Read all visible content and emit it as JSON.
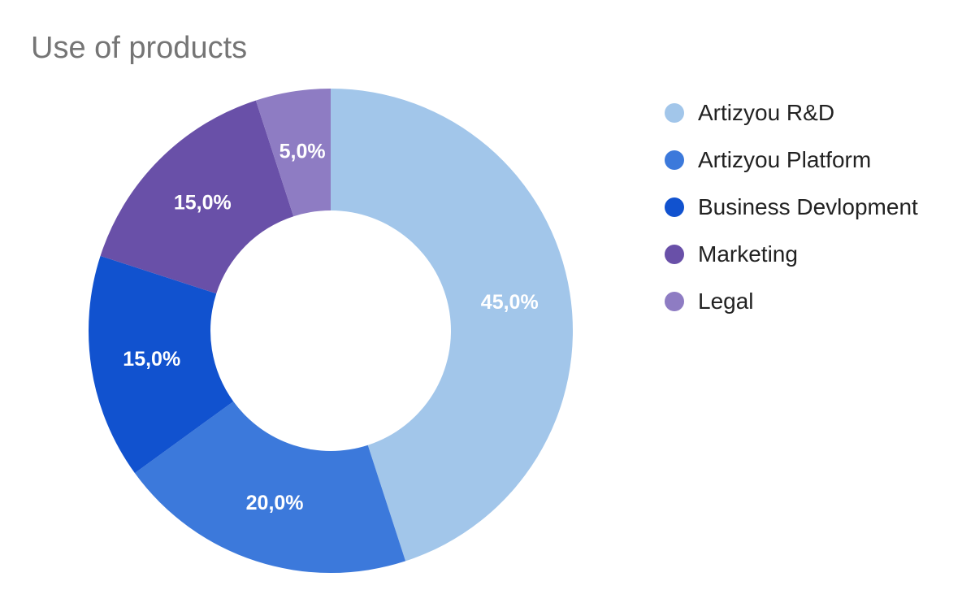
{
  "chart_data": {
    "type": "pie",
    "title": "Use of products",
    "donut": true,
    "legend_position": "right",
    "start_angle_deg": 0,
    "direction": "clockwise",
    "categories": [
      "Artizyou R&D",
      "Artizyou Platform",
      "Business Devlopment",
      "Marketing",
      "Legal"
    ],
    "values": [
      45.0,
      20.0,
      15.0,
      15.0,
      5.0
    ],
    "labels": [
      "45,0%",
      "20,0%",
      "15,0%",
      "15,0%",
      "5,0%"
    ],
    "colors": [
      "#a2c6ea",
      "#3c79db",
      "#1152cf",
      "#6950a8",
      "#8e7cc3"
    ]
  }
}
